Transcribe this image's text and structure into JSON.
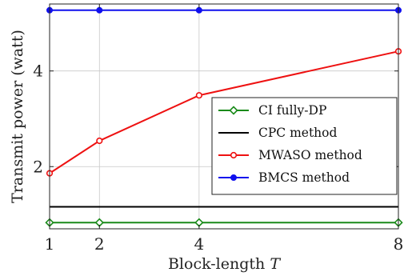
{
  "chart_data": {
    "type": "line",
    "title": "",
    "xlabel": "Block-length T",
    "xlabel_parts": [
      "Block-length ",
      "T"
    ],
    "ylabel": "Transmit power (watt)",
    "x": [
      1,
      2,
      4,
      8
    ],
    "xticks": [
      "1",
      "2",
      "4",
      "8"
    ],
    "xlim": [
      1,
      8
    ],
    "yticks": [
      "2",
      "4"
    ],
    "ytick_values": [
      2,
      4
    ],
    "ylim": [
      0.7,
      5.4
    ],
    "grid": true,
    "legend_position": "center-right",
    "series": [
      {
        "name": "CI fully-DP",
        "values": [
          0.83,
          0.83,
          0.83,
          0.83
        ],
        "color": "#1a8a1a",
        "marker": "diamond-open"
      },
      {
        "name": "CPC method",
        "values": [
          1.16,
          1.16,
          1.16,
          1.16
        ],
        "color": "#000000",
        "marker": "none"
      },
      {
        "name": "MWASO method",
        "values": [
          1.86,
          2.54,
          3.49,
          4.41
        ],
        "color": "#ee1111",
        "marker": "circle-open"
      },
      {
        "name": "BMCS method",
        "values": [
          5.27,
          5.27,
          5.27,
          5.27
        ],
        "color": "#1010ee",
        "marker": "circle-filled"
      }
    ]
  }
}
